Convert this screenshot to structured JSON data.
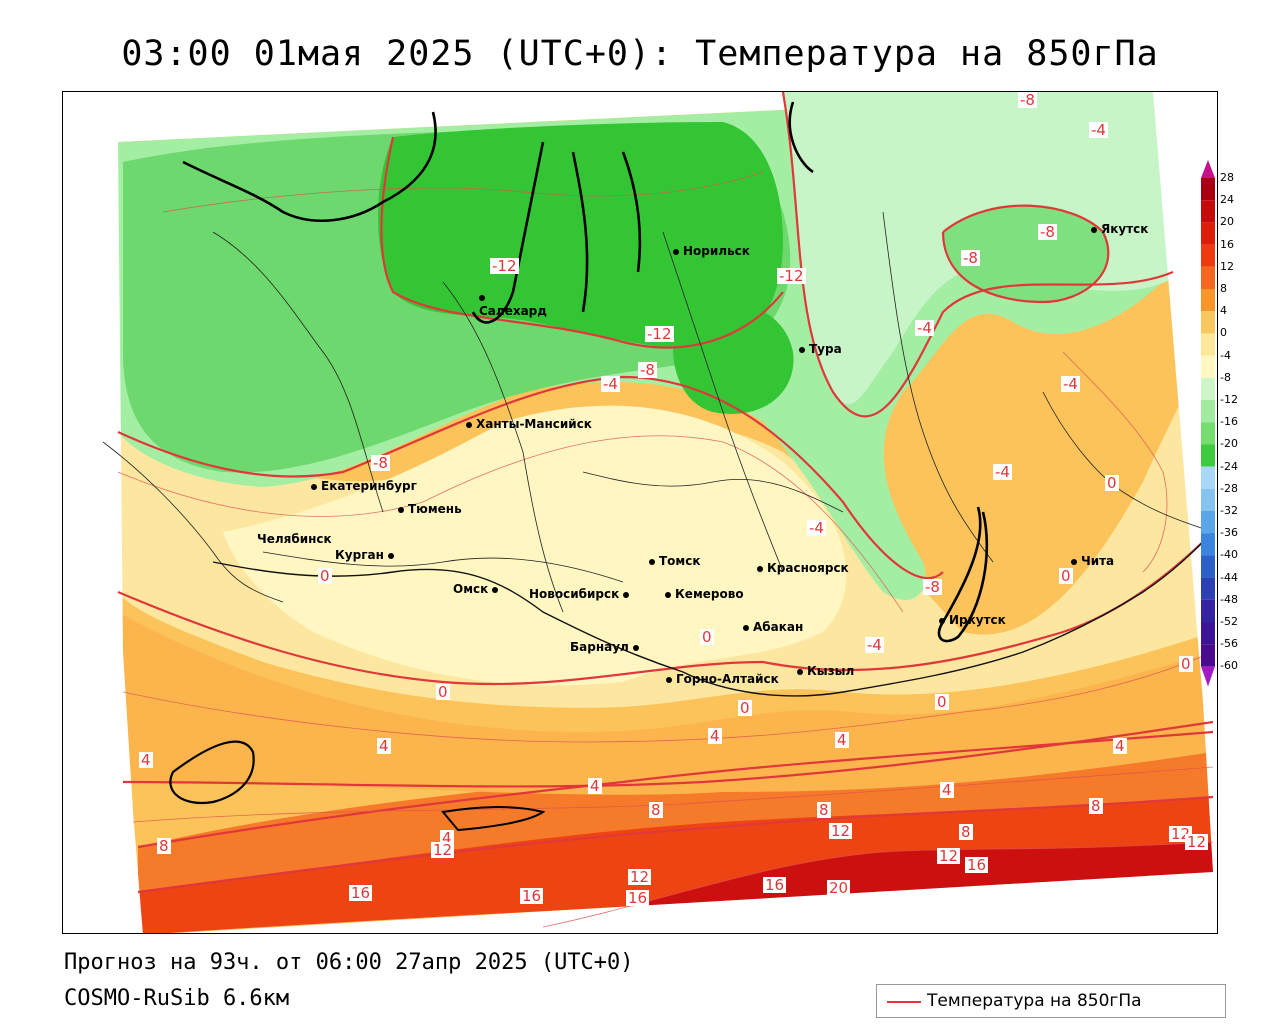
{
  "title": "03:00 01мая 2025 (UTC+0): Температура на 850гПа",
  "footer": {
    "forecast": "Прогноз на 93ч. от 06:00 27апр 2025 (UTC+0)",
    "model": "COSMO-RuSib 6.6км"
  },
  "legend": {
    "label": "Температура на 850гПа",
    "line_color": "#e0383a"
  },
  "cities": [
    {
      "name": "Норильск"
    },
    {
      "name": "Салехард"
    },
    {
      "name": "Тура"
    },
    {
      "name": "Якутск"
    },
    {
      "name": "Ханты-Мансийск"
    },
    {
      "name": "Екатеринбург"
    },
    {
      "name": "Тюмень"
    },
    {
      "name": "Челябинск"
    },
    {
      "name": "Курган"
    },
    {
      "name": "Омск"
    },
    {
      "name": "Новосибирск"
    },
    {
      "name": "Томск"
    },
    {
      "name": "Кемерово"
    },
    {
      "name": "Красноярск"
    },
    {
      "name": "Барнаул"
    },
    {
      "name": "Абакан"
    },
    {
      "name": "Кызыл"
    },
    {
      "name": "Горно-Алтайск"
    },
    {
      "name": "Иркутск"
    },
    {
      "name": "Чита"
    }
  ],
  "contour_labels": [
    "-8",
    "-4",
    "-8",
    "-8",
    "-12",
    "-12",
    "-12",
    "-8",
    "-4",
    "-4",
    "-4",
    "-8",
    "-4",
    "-4",
    "-4",
    "-8",
    "0",
    "0",
    "0",
    "0",
    "0",
    "0",
    "0",
    "0",
    "4",
    "4",
    "4",
    "4",
    "4",
    "4",
    "4",
    "4",
    "8",
    "8",
    "8",
    "8",
    "8",
    "12",
    "12",
    "12",
    "12",
    "12",
    "12",
    "16",
    "16",
    "16",
    "16",
    "16",
    "20"
  ],
  "colorbar": {
    "labels": [
      "28",
      "24",
      "20",
      "16",
      "12",
      "8",
      "4",
      "0",
      "-4",
      "-8",
      "-12",
      "-16",
      "-20",
      "-24",
      "-28",
      "-32",
      "-36",
      "-40",
      "-44",
      "-48",
      "-52",
      "-56",
      "-60"
    ],
    "colors": [
      "#a80010",
      "#c40a0a",
      "#dc1e08",
      "#ee3a0e",
      "#f5661e",
      "#f8962c",
      "#fbc860",
      "#fde89a",
      "#fff8c0",
      "#cdf5c8",
      "#a2eaa0",
      "#76dc70",
      "#3fc93f",
      "#a8d8f5",
      "#86c4f0",
      "#5aa6e6",
      "#3b86dc",
      "#2c62c8",
      "#2c40b4",
      "#3424a0",
      "#3c1496",
      "#4a0c8c"
    ],
    "top_arrow": "#c8108c",
    "bottom_arrow": "#a41ac4"
  }
}
